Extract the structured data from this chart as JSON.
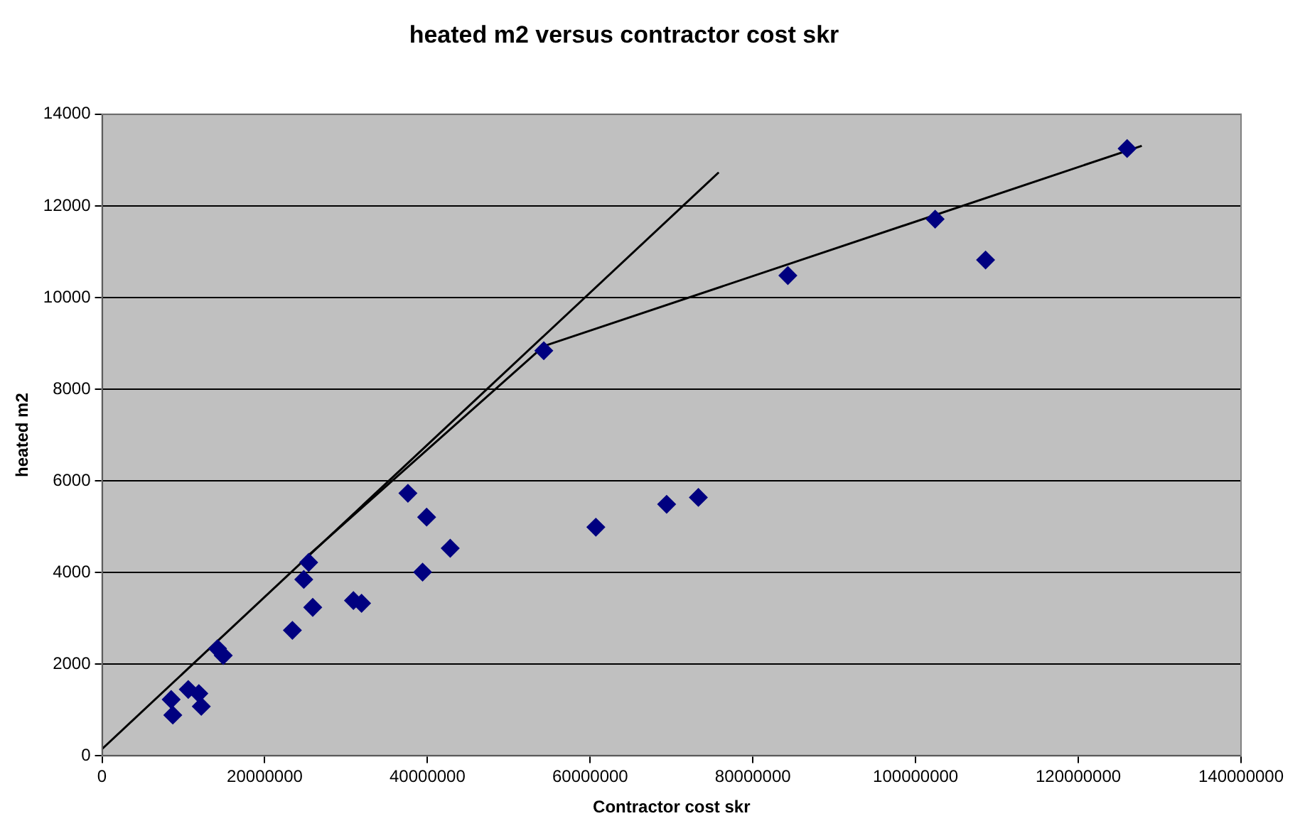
{
  "chart_data": {
    "type": "scatter",
    "title": "heated m2 versus contractor cost skr",
    "xlabel": "Contractor cost skr",
    "ylabel": "heated m2",
    "xlim": [
      0,
      140000000
    ],
    "xticks": [
      0,
      20000000,
      40000000,
      60000000,
      80000000,
      100000000,
      120000000,
      140000000
    ],
    "ylim": [
      0,
      14000
    ],
    "yticks": [
      0,
      2000,
      4000,
      6000,
      8000,
      10000,
      12000,
      14000
    ],
    "grid": "y",
    "legend": false,
    "marker": "diamond",
    "series": [
      {
        "color": "#000080",
        "x": [
          8500000,
          8700000,
          10600000,
          11900000,
          12200000,
          14200000,
          14900000,
          23400000,
          24800000,
          25400000,
          25900000,
          30900000,
          31900000,
          37600000,
          39400000,
          39900000,
          42800000,
          54300000,
          60700000,
          69400000,
          73300000,
          84300000,
          102400000,
          108600000,
          126000000
        ],
        "values": [
          1230,
          890,
          1450,
          1360,
          1080,
          2340,
          2190,
          2740,
          3850,
          4220,
          3240,
          3390,
          3330,
          5730,
          4010,
          5210,
          4530,
          8840,
          4990,
          5490,
          5640,
          10480,
          11710,
          10820,
          13250
        ]
      },
      {
        "type": "line",
        "color": "#000000",
        "marker": "none",
        "x": [
          0,
          75800000
        ],
        "values": [
          150,
          12730
        ]
      },
      {
        "type": "line",
        "color": "#000000",
        "marker": "none",
        "x": [
          25400000,
          54300000,
          127800000
        ],
        "values": [
          4380,
          8940,
          13310
        ]
      }
    ]
  }
}
